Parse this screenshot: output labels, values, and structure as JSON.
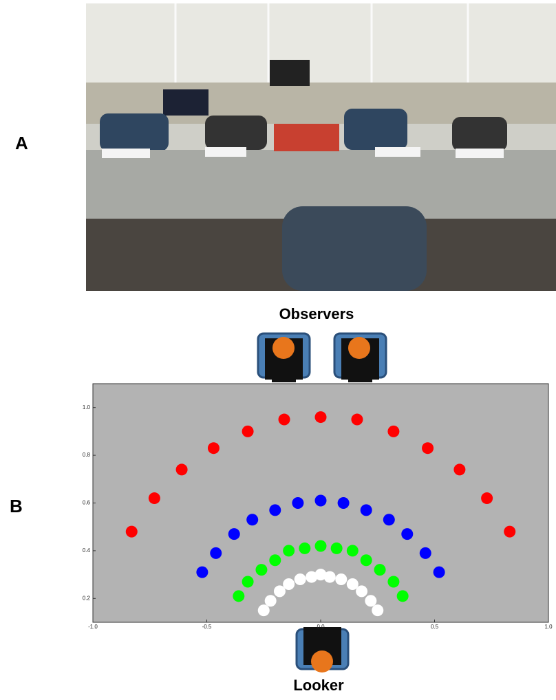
{
  "panel_labels": [
    "A",
    "B"
  ],
  "chart_data": {
    "type": "scatter",
    "annotations": [
      "Observers",
      "Looker"
    ],
    "xlim": [
      -1,
      1
    ],
    "ylim": [
      0.1,
      1.1
    ],
    "xticks": [
      {
        "value": -1,
        "label": "-1.0"
      },
      -0.5,
      {
        "value": 0,
        "label": "0.0"
      },
      0.5,
      {
        "value": 1,
        "label": "1.0"
      }
    ],
    "yticks": [
      0.2,
      0.4,
      0.6,
      0.8,
      {
        "value": 1,
        "label": "1.0"
      }
    ],
    "background": "#b3b3b3",
    "series": [
      {
        "color": "#ff0000",
        "x": [
          -0.83,
          -0.73,
          -0.61,
          -0.47,
          -0.32,
          -0.16,
          0,
          0.16,
          0.32,
          0.47,
          0.61,
          0.73,
          0.83
        ],
        "values": [
          0.48,
          0.62,
          0.74,
          0.83,
          0.9,
          0.95,
          0.96,
          0.95,
          0.9,
          0.83,
          0.74,
          0.62,
          0.48
        ]
      },
      {
        "color": "#0000ff",
        "x": [
          -0.52,
          -0.46,
          -0.38,
          -0.3,
          -0.2,
          -0.1,
          0,
          0.1,
          0.2,
          0.3,
          0.38,
          0.46,
          0.52
        ],
        "values": [
          0.31,
          0.39,
          0.47,
          0.53,
          0.57,
          0.6,
          0.61,
          0.6,
          0.57,
          0.53,
          0.47,
          0.39,
          0.31
        ]
      },
      {
        "color": "#00ff00",
        "x": [
          -0.36,
          -0.32,
          -0.26,
          -0.2,
          -0.14,
          -0.07,
          0,
          0.07,
          0.14,
          0.2,
          0.26,
          0.32,
          0.36
        ],
        "values": [
          0.21,
          0.27,
          0.32,
          0.36,
          0.4,
          0.41,
          0.42,
          0.41,
          0.4,
          0.36,
          0.32,
          0.27,
          0.21
        ]
      },
      {
        "color": "#ffffff",
        "x": [
          -0.25,
          -0.22,
          -0.18,
          -0.14,
          -0.09,
          -0.04,
          0,
          0.04,
          0.09,
          0.14,
          0.18,
          0.22,
          0.25
        ],
        "values": [
          0.15,
          0.19,
          0.23,
          0.26,
          0.28,
          0.29,
          0.3,
          0.29,
          0.28,
          0.26,
          0.23,
          0.19,
          0.15
        ]
      }
    ]
  }
}
